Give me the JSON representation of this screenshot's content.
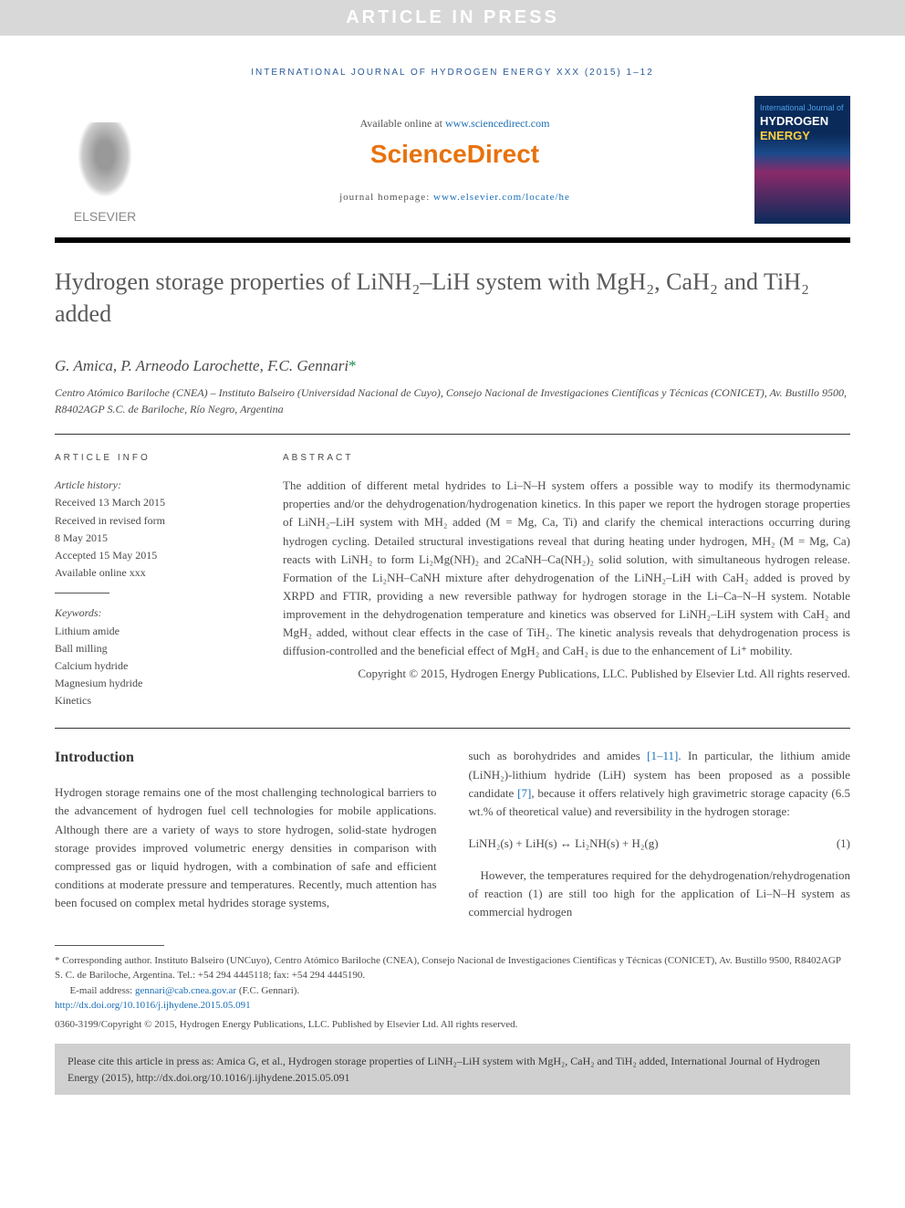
{
  "banner": "ARTICLE IN PRESS",
  "journal_header": "INTERNATIONAL JOURNAL OF HYDROGEN ENERGY XXX (2015) 1–12",
  "publisher_name": "ELSEVIER",
  "available_prefix": "Available online at ",
  "available_link": "www.sciencedirect.com",
  "sd_brand": "ScienceDirect",
  "homepage_prefix": "journal homepage: ",
  "homepage_link": "www.elsevier.com/locate/he",
  "cover": {
    "line1": "International Journal of",
    "line2": "HYDROGEN",
    "line3": "ENERGY"
  },
  "title_html": "Hydrogen storage properties of LiNH₂–LiH system with MgH₂, CaH₂ and TiH₂ added",
  "authors": "G. Amica, P. Arneodo Larochette, F.C. Gennari",
  "affiliation": "Centro Atómico Bariloche (CNEA) – Instituto Balseiro (Universidad Nacional de Cuyo), Consejo Nacional de Investigaciones Científicas y Técnicas (CONICET), Av. Bustillo 9500, R8402AGP S.C. de Bariloche, Río Negro, Argentina",
  "article_info_label": "ARTICLE INFO",
  "abstract_label": "ABSTRACT",
  "history_label": "Article history:",
  "history": [
    "Received 13 March 2015",
    "Received in revised form",
    "8 May 2015",
    "Accepted 15 May 2015",
    "Available online xxx"
  ],
  "keywords_label": "Keywords:",
  "keywords": [
    "Lithium amide",
    "Ball milling",
    "Calcium hydride",
    "Magnesium hydride",
    "Kinetics"
  ],
  "abstract": "The addition of different metal hydrides to Li–N–H system offers a possible way to modify its thermodynamic properties and/or the dehydrogenation/hydrogenation kinetics. In this paper we report the hydrogen storage properties of LiNH₂–LiH system with MH₂ added (M = Mg, Ca, Ti) and clarify the chemical interactions occurring during hydrogen cycling. Detailed structural investigations reveal that during heating under hydrogen, MH₂ (M = Mg, Ca) reacts with LiNH₂ to form Li₂Mg(NH)₂ and 2CaNH–Ca(NH₂)₂ solid solution, with simultaneous hydrogen release. Formation of the Li₂NH–CaNH mixture after dehydrogenation of the LiNH₂–LiH with CaH₂ added is proved by XRPD and FTIR, providing a new reversible pathway for hydrogen storage in the Li–Ca–N–H system. Notable improvement in the dehydrogenation temperature and kinetics was observed for LiNH₂–LiH system with CaH₂ and MgH₂ added, without clear effects in the case of TiH₂. The kinetic analysis reveals that dehydrogenation process is diffusion-controlled and the beneficial effect of MgH₂ and CaH₂ is due to the enhancement of Li⁺ mobility.",
  "copyright_abstract": "Copyright © 2015, Hydrogen Energy Publications, LLC. Published by Elsevier Ltd. All rights reserved.",
  "intro_heading": "Introduction",
  "intro_col1": "Hydrogen storage remains one of the most challenging technological barriers to the advancement of hydrogen fuel cell technologies for mobile applications. Although there are a variety of ways to store hydrogen, solid-state hydrogen storage provides improved volumetric energy densities in comparison with compressed gas or liquid hydrogen, with a combination of safe and efficient conditions at moderate pressure and temperatures. Recently, much attention has been focused on complex metal hydrides storage systems,",
  "intro_col2_a": "such as borohydrides and amides ",
  "intro_refs1": "[1–11]",
  "intro_col2_b": ". In particular, the lithium amide (LiNH₂)-lithium hydride (LiH) system has been proposed as a possible candidate ",
  "intro_refs2": "[7]",
  "intro_col2_c": ", because it offers relatively high gravimetric storage capacity (6.5 wt.% of theoretical value) and reversibility in the hydrogen storage:",
  "equation": "LiNH₂(s) + LiH(s) ↔ Li₂NH(s) + H₂(g)",
  "equation_num": "(1)",
  "intro_col2_d": "However, the temperatures required for the dehydrogenation/rehydrogenation of reaction (1) are still too high for the application of Li–N–H system as commercial hydrogen",
  "footnote_star": "* Corresponding author.",
  "footnote_addr": " Instituto Balseiro (UNCuyo), Centro Atómico Bariloche (CNEA), Consejo Nacional de Investigaciones Científicas y Técnicas (CONICET), Av. Bustillo 9500, R8402AGP S. C. de Bariloche, Argentina. Tel.: +54 294 4445118; fax: +54 294 4445190.",
  "footnote_email_label": "E-mail address: ",
  "footnote_email": "gennari@cab.cnea.gov.ar",
  "footnote_email_suffix": " (F.C. Gennari).",
  "doi": "http://dx.doi.org/10.1016/j.ijhydene.2015.05.091",
  "issn_line": "0360-3199/Copyright © 2015, Hydrogen Energy Publications, LLC. Published by Elsevier Ltd. All rights reserved.",
  "cite_box": "Please cite this article in press as: Amica G, et al., Hydrogen storage properties of LiNH₂–LiH system with MgH₂, CaH₂ and TiH₂ added, International Journal of Hydrogen Energy (2015), http://dx.doi.org/10.1016/j.ijhydene.2015.05.091",
  "colors": {
    "link": "#1a6db5",
    "orange": "#e8720c",
    "banner_bg": "#d8d8d8",
    "text": "#4a4a4a",
    "green": "#1a8a4a"
  }
}
